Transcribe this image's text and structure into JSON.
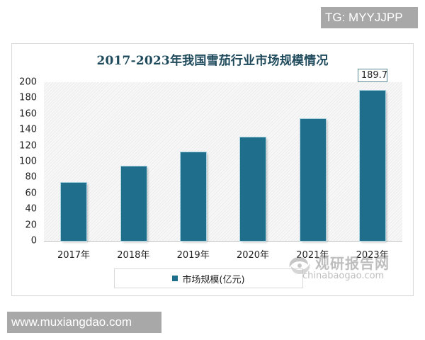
{
  "watermarks": {
    "tg": "TG: MYYJJPP",
    "site": "www.muxiangdao.com",
    "logo_cn": "观研报告网",
    "logo_en": "chinabaogao.com"
  },
  "colors": {
    "bar": "#1f6e8c",
    "title": "#1e4a5c"
  },
  "chart_data": {
    "type": "bar",
    "title": "2017-2023年我国雪茄行业市场规模情况",
    "categories": [
      "2017年",
      "2018年",
      "2019年",
      "2020年",
      "2021年",
      "2023年"
    ],
    "series": [
      {
        "name": "市场规模(亿元)",
        "values": [
          73,
          94,
          112,
          130,
          154,
          189.7
        ]
      }
    ],
    "data_labels": [
      {
        "category": "2023年",
        "text": "189.7"
      }
    ],
    "xlabel": "",
    "ylabel": "",
    "ylim": [
      0,
      200
    ],
    "yticks": [
      "0",
      "20",
      "40",
      "60",
      "80",
      "100",
      "120",
      "140",
      "160",
      "180",
      "200"
    ],
    "grid": false,
    "legend_position": "bottom"
  }
}
